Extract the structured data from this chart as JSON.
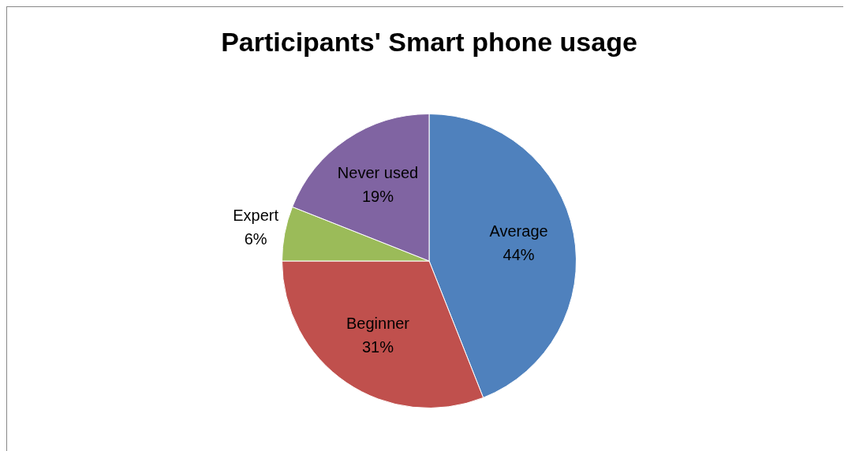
{
  "chart_data": {
    "type": "pie",
    "title": "Participants' Smart phone usage",
    "categories": [
      "Average",
      "Beginner",
      "Expert",
      "Never used"
    ],
    "values": [
      44,
      31,
      6,
      19
    ],
    "colors": [
      "#4f81bd",
      "#c0504d",
      "#9bbb59",
      "#8064a2"
    ],
    "value_labels": [
      "44%",
      "31%",
      "6%",
      "19%"
    ],
    "legend": false
  }
}
